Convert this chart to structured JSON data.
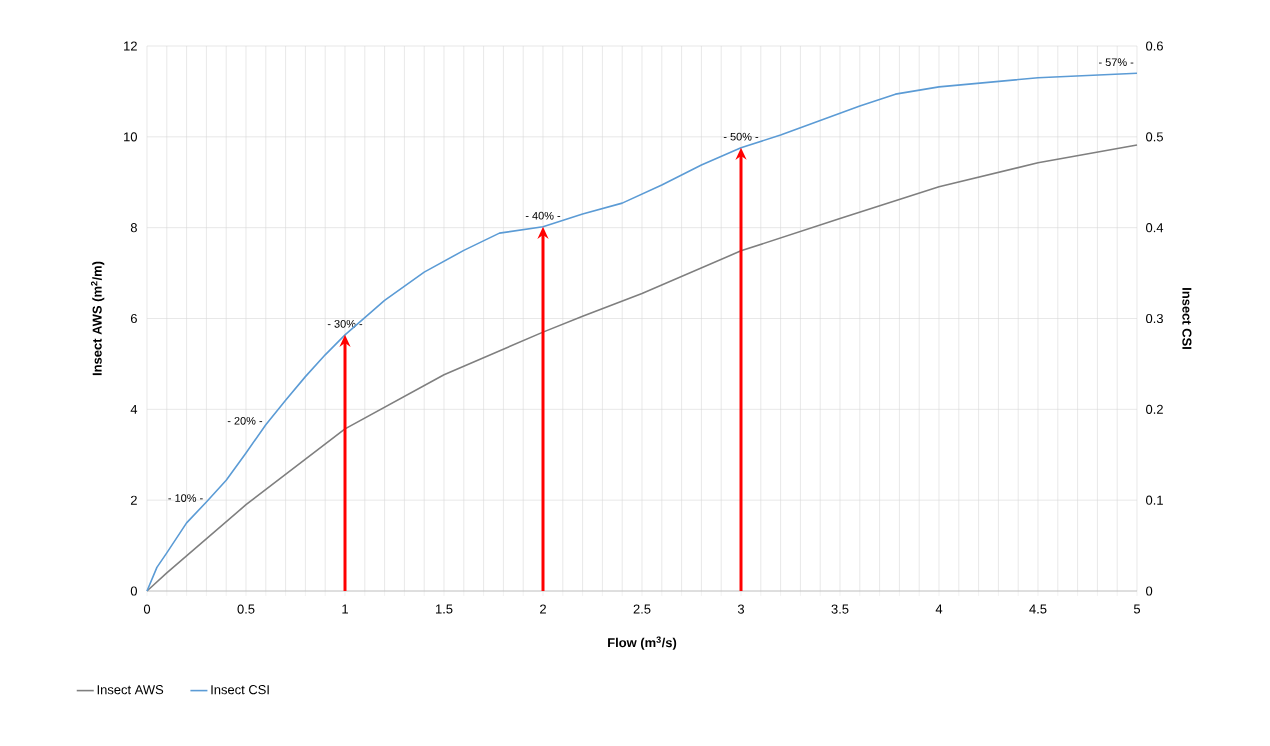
{
  "chart_data": {
    "type": "line",
    "xlabel": "Flow (m$^{3}$/s)",
    "ylabel": "Insect AWS (m$^{2}$/m)",
    "y2label": "Insect CSI",
    "xlim": [
      0,
      5
    ],
    "ylim": [
      0,
      12
    ],
    "y2lim": [
      0,
      0.6
    ],
    "xticks": [
      0,
      {
        "value": 0.1,
        "label": null
      },
      {
        "value": 0.2,
        "label": null
      },
      {
        "value": 0.3,
        "label": null
      },
      {
        "value": 0.4,
        "label": null
      },
      0.5,
      {
        "value": 0.6,
        "label": null
      },
      {
        "value": 0.7,
        "label": null
      },
      {
        "value": 0.8,
        "label": null
      },
      {
        "value": 0.9,
        "label": null
      },
      1,
      {
        "value": 1.1,
        "label": null
      },
      {
        "value": 1.2,
        "label": null
      },
      {
        "value": 1.3,
        "label": null
      },
      {
        "value": 1.4,
        "label": null
      },
      1.5,
      {
        "value": 1.6,
        "label": null
      },
      {
        "value": 1.7,
        "label": null
      },
      {
        "value": 1.8,
        "label": null
      },
      {
        "value": 1.9,
        "label": null
      },
      2,
      {
        "value": 2.1,
        "label": null
      },
      {
        "value": 2.2,
        "label": null
      },
      {
        "value": 2.3,
        "label": null
      },
      {
        "value": 2.4,
        "label": null
      },
      2.5,
      {
        "value": 2.6,
        "label": null
      },
      {
        "value": 2.7,
        "label": null
      },
      {
        "value": 2.8,
        "label": null
      },
      {
        "value": 2.9,
        "label": null
      },
      3,
      {
        "value": 3.1,
        "label": null
      },
      {
        "value": 3.2,
        "label": null
      },
      {
        "value": 3.3,
        "label": null
      },
      {
        "value": 3.4,
        "label": null
      },
      3.5,
      {
        "value": 3.6,
        "label": null
      },
      {
        "value": 3.7,
        "label": null
      },
      {
        "value": 3.8,
        "label": null
      },
      {
        "value": 3.9,
        "label": null
      },
      4,
      {
        "value": 4.1,
        "label": null
      },
      {
        "value": 4.2,
        "label": null
      },
      {
        "value": 4.3,
        "label": null
      },
      {
        "value": 4.4,
        "label": null
      },
      4.5,
      {
        "value": 4.6,
        "label": null
      },
      {
        "value": 4.7,
        "label": null
      },
      {
        "value": 4.8,
        "label": null
      },
      {
        "value": 4.9,
        "label": null
      },
      5
    ],
    "yticks": [
      0,
      2,
      4,
      6,
      8,
      10,
      12
    ],
    "y2ticks": [
      0,
      0.1,
      0.2,
      0.3,
      0.4,
      0.5,
      0.6
    ],
    "grid": true,
    "legend": "bottom",
    "series": [
      {
        "name": "Insect AWS",
        "color": "#7f7f7f",
        "x": [
          0,
          0.1,
          0.5,
          1,
          1.5,
          2,
          2.2,
          2.5,
          3,
          3.5,
          4,
          4.5,
          5
        ],
        "values": [
          0,
          0.4,
          1.9,
          3.57,
          4.76,
          5.7,
          6.05,
          6.55,
          7.49,
          8.2,
          8.9,
          9.43,
          9.82
        ]
      },
      {
        "name": "Insect CSI",
        "color": "#5b9bd5",
        "axis": "y2",
        "x": [
          0,
          0.05,
          0.1,
          0.2,
          0.3,
          0.4,
          0.5,
          0.6,
          0.7,
          0.8,
          0.9,
          1,
          1.2,
          1.4,
          1.6,
          1.78,
          2,
          2.2,
          2.4,
          2.6,
          2.8,
          3,
          3.2,
          3.4,
          3.6,
          3.78,
          4,
          4.5,
          5
        ],
        "values": [
          0,
          0.026,
          0.042,
          0.075,
          0.098,
          0.122,
          0.152,
          0.183,
          0.21,
          0.236,
          0.26,
          0.282,
          0.32,
          0.351,
          0.375,
          0.394,
          0.401,
          0.415,
          0.427,
          0.447,
          0.469,
          0.488,
          0.502,
          0.518,
          0.534,
          0.547,
          0.555,
          0.565,
          0.57
        ]
      }
    ],
    "ref_lines": [
      {
        "axis": "x",
        "value": 1,
        "color": "#ff0000"
      },
      {
        "axis": "x",
        "value": 2,
        "color": "#ff0000"
      },
      {
        "axis": "x",
        "value": 3,
        "color": "#ff0000"
      }
    ],
    "annotations": [
      {
        "text": "- 10% -",
        "x": 0.3,
        "y": 1.96
      },
      {
        "text": "- 20% -",
        "x": 0.6,
        "y": 3.66
      },
      {
        "text": "- 30% -",
        "x": 1,
        "y": 5.64
      },
      {
        "text": "- 40% -",
        "x": 2,
        "y": 8.02
      },
      {
        "text": "- 50% -",
        "x": 3,
        "y": 9.76
      },
      {
        "text": "- 57% -",
        "x": 5,
        "y": 11.4
      }
    ]
  }
}
